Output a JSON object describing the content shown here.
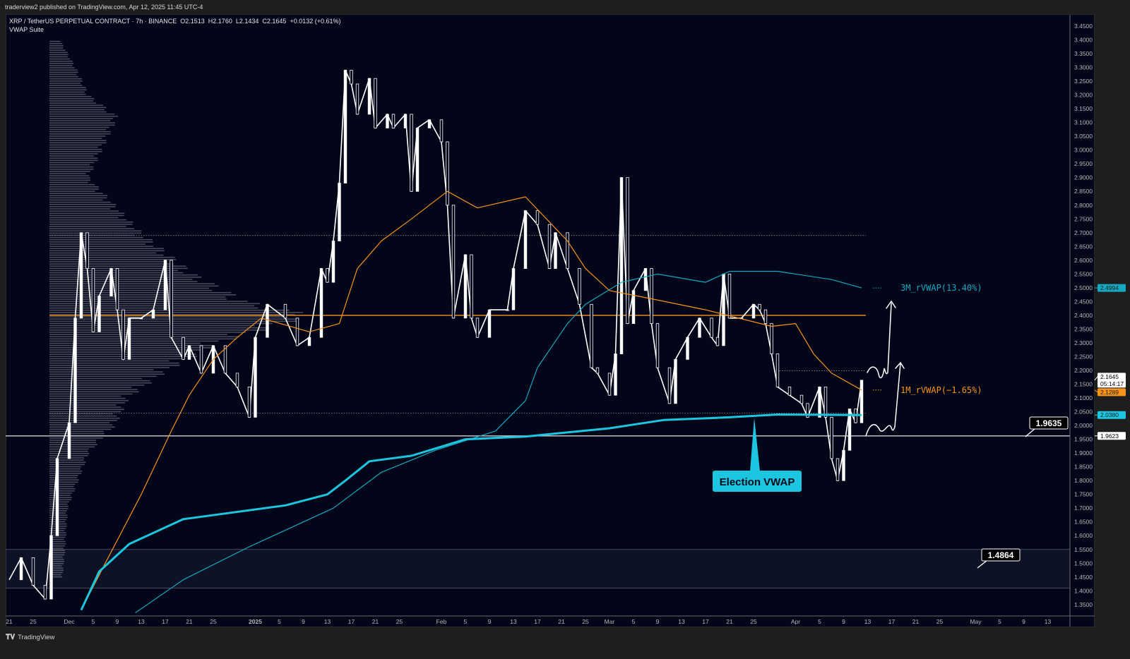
{
  "publish_line": "traderview2 published on TradingView.com, Apr 12, 2025 11:45 UTC-4",
  "header": {
    "symbol": "XRP / TetherUS PERPETUAL CONTRACT · 7h · BINANCE",
    "open": "O2.1513",
    "high": "H2.1760",
    "low": "L2.1434",
    "close": "C2.1645",
    "change": "+0.0132 (+0.61%)",
    "indicator": "VWAP Suite"
  },
  "footer": {
    "brand": "TradingView",
    "logo_icon": "tradingview-logo-icon"
  },
  "colors": {
    "background": "#030518",
    "price": "#ffffff",
    "vwap_1m": "#f7931a",
    "vwap_3m": "#13a9c0",
    "election_vwap": "#1cc6e0",
    "level_line": "#f7931a"
  },
  "chart_data": {
    "type": "line",
    "title": "",
    "xlabel": "",
    "ylabel": "",
    "ylim": [
      1.32,
      3.48
    ],
    "grid": false,
    "y_ticks": [
      "3.4500",
      "3.4000",
      "3.3500",
      "3.3000",
      "3.2500",
      "3.2000",
      "3.1500",
      "3.1000",
      "3.0500",
      "3.0000",
      "2.9500",
      "2.9000",
      "2.8500",
      "2.8000",
      "2.7500",
      "2.7000",
      "2.6500",
      "2.6000",
      "2.5500",
      "2.5000",
      "2.4500",
      "2.4000",
      "2.3500",
      "2.3000",
      "2.2500",
      "2.2000",
      "2.1500",
      "2.1000",
      "2.0500",
      "2.0000",
      "1.9500",
      "1.9000",
      "1.8500",
      "1.8000",
      "1.7500",
      "1.7000",
      "1.6500",
      "1.6000",
      "1.5500",
      "1.5000",
      "1.4500",
      "1.4000",
      "1.3500"
    ],
    "x_ticks": [
      {
        "label": "21",
        "date": "2024-11-21"
      },
      {
        "label": "25",
        "date": "2024-11-25"
      },
      {
        "label": "Dec",
        "date": "2024-12-01"
      },
      {
        "label": "5",
        "date": "2024-12-05"
      },
      {
        "label": "9",
        "date": "2024-12-09"
      },
      {
        "label": "13",
        "date": "2024-12-13"
      },
      {
        "label": "17",
        "date": "2024-12-17"
      },
      {
        "label": "21",
        "date": "2024-12-21"
      },
      {
        "label": "25",
        "date": "2024-12-25"
      },
      {
        "label": "2025",
        "date": "2025-01-01"
      },
      {
        "label": "5",
        "date": "2025-01-05"
      },
      {
        "label": "9",
        "date": "2025-01-09"
      },
      {
        "label": "13",
        "date": "2025-01-13"
      },
      {
        "label": "17",
        "date": "2025-01-17"
      },
      {
        "label": "21",
        "date": "2025-01-21"
      },
      {
        "label": "25",
        "date": "2025-01-25"
      },
      {
        "label": "Feb",
        "date": "2025-02-01"
      },
      {
        "label": "5",
        "date": "2025-02-05"
      },
      {
        "label": "9",
        "date": "2025-02-09"
      },
      {
        "label": "13",
        "date": "2025-02-13"
      },
      {
        "label": "17",
        "date": "2025-02-17"
      },
      {
        "label": "21",
        "date": "2025-02-21"
      },
      {
        "label": "25",
        "date": "2025-02-25"
      },
      {
        "label": "Mar",
        "date": "2025-03-01"
      },
      {
        "label": "5",
        "date": "2025-03-05"
      },
      {
        "label": "9",
        "date": "2025-03-09"
      },
      {
        "label": "13",
        "date": "2025-03-13"
      },
      {
        "label": "17",
        "date": "2025-03-17"
      },
      {
        "label": "21",
        "date": "2025-03-21"
      },
      {
        "label": "25",
        "date": "2025-03-25"
      },
      {
        "label": "Apr",
        "date": "2025-04-01"
      },
      {
        "label": "5",
        "date": "2025-04-05"
      },
      {
        "label": "9",
        "date": "2025-04-09"
      },
      {
        "label": "13",
        "date": "2025-04-13"
      },
      {
        "label": "17",
        "date": "2025-04-17"
      },
      {
        "label": "21",
        "date": "2025-04-21"
      },
      {
        "label": "25",
        "date": "2025-04-25"
      },
      {
        "label": "May",
        "date": "2025-05-01"
      },
      {
        "label": "5",
        "date": "2025-05-05"
      },
      {
        "label": "9",
        "date": "2025-05-09"
      },
      {
        "label": "13",
        "date": "2025-05-13"
      }
    ],
    "series": [
      {
        "key": "price",
        "color": "#ffffff",
        "points": [
          [
            "2024-11-21",
            1.44
          ],
          [
            "2024-11-23",
            1.52
          ],
          [
            "2024-11-25",
            1.42
          ],
          [
            "2024-11-27",
            1.37
          ],
          [
            "2024-11-28",
            1.6
          ],
          [
            "2024-11-29",
            1.88
          ],
          [
            "2024-12-01",
            2.01
          ],
          [
            "2024-12-02",
            2.39
          ],
          [
            "2024-12-03",
            2.7
          ],
          [
            "2024-12-04",
            2.57
          ],
          [
            "2024-12-05",
            2.34
          ],
          [
            "2024-12-06",
            2.47
          ],
          [
            "2024-12-08",
            2.57
          ],
          [
            "2024-12-09",
            2.42
          ],
          [
            "2024-12-10",
            2.24
          ],
          [
            "2024-12-11",
            2.39
          ],
          [
            "2024-12-13",
            2.39
          ],
          [
            "2024-12-15",
            2.42
          ],
          [
            "2024-12-17",
            2.6
          ],
          [
            "2024-12-18",
            2.32
          ],
          [
            "2024-12-20",
            2.24
          ],
          [
            "2024-12-21",
            2.29
          ],
          [
            "2024-12-23",
            2.19
          ],
          [
            "2024-12-25",
            2.29
          ],
          [
            "2024-12-27",
            2.19
          ],
          [
            "2024-12-29",
            2.14
          ],
          [
            "2024-12-31",
            2.03
          ],
          [
            "2025-01-01",
            2.32
          ],
          [
            "2025-01-03",
            2.44
          ],
          [
            "2025-01-06",
            2.39
          ],
          [
            "2025-01-08",
            2.29
          ],
          [
            "2025-01-10",
            2.32
          ],
          [
            "2025-01-12",
            2.57
          ],
          [
            "2025-01-13",
            2.52
          ],
          [
            "2025-01-14",
            2.67
          ],
          [
            "2025-01-15",
            2.88
          ],
          [
            "2025-01-16",
            3.29
          ],
          [
            "2025-01-17",
            3.24
          ],
          [
            "2025-01-18",
            3.13
          ],
          [
            "2025-01-20",
            3.26
          ],
          [
            "2025-01-21",
            3.08
          ],
          [
            "2025-01-23",
            3.13
          ],
          [
            "2025-01-24",
            3.08
          ],
          [
            "2025-01-26",
            3.13
          ],
          [
            "2025-01-27",
            2.85
          ],
          [
            "2025-01-28",
            3.08
          ],
          [
            "2025-01-30",
            3.11
          ],
          [
            "2025-02-01",
            3.03
          ],
          [
            "2025-02-02",
            2.8
          ],
          [
            "2025-02-03",
            2.39
          ],
          [
            "2025-02-05",
            2.62
          ],
          [
            "2025-02-06",
            2.39
          ],
          [
            "2025-02-07",
            2.32
          ],
          [
            "2025-02-09",
            2.42
          ],
          [
            "2025-02-12",
            2.42
          ],
          [
            "2025-02-13",
            2.57
          ],
          [
            "2025-02-15",
            2.78
          ],
          [
            "2025-02-17",
            2.73
          ],
          [
            "2025-02-19",
            2.57
          ],
          [
            "2025-02-20",
            2.7
          ],
          [
            "2025-02-22",
            2.57
          ],
          [
            "2025-02-24",
            2.44
          ],
          [
            "2025-02-26",
            2.21
          ],
          [
            "2025-02-27",
            2.19
          ],
          [
            "2025-03-01",
            2.11
          ],
          [
            "2025-03-02",
            2.26
          ],
          [
            "2025-03-03",
            2.9
          ],
          [
            "2025-03-04",
            2.37
          ],
          [
            "2025-03-05",
            2.49
          ],
          [
            "2025-03-07",
            2.57
          ],
          [
            "2025-03-08",
            2.37
          ],
          [
            "2025-03-09",
            2.21
          ],
          [
            "2025-03-11",
            2.08
          ],
          [
            "2025-03-12",
            2.24
          ],
          [
            "2025-03-14",
            2.32
          ],
          [
            "2025-03-16",
            2.39
          ],
          [
            "2025-03-18",
            2.32
          ],
          [
            "2025-03-19",
            2.29
          ],
          [
            "2025-03-20",
            2.55
          ],
          [
            "2025-03-21",
            2.39
          ],
          [
            "2025-03-23",
            2.39
          ],
          [
            "2025-03-25",
            2.44
          ],
          [
            "2025-03-26",
            2.42
          ],
          [
            "2025-03-27",
            2.37
          ],
          [
            "2025-03-28",
            2.26
          ],
          [
            "2025-03-29",
            2.14
          ],
          [
            "2025-03-31",
            2.11
          ],
          [
            "2025-04-02",
            2.08
          ],
          [
            "2025-04-03",
            2.03
          ],
          [
            "2025-04-05",
            2.14
          ],
          [
            "2025-04-06",
            2.03
          ],
          [
            "2025-04-07",
            1.88
          ],
          [
            "2025-04-08",
            1.8
          ],
          [
            "2025-04-09",
            1.91
          ],
          [
            "2025-04-10",
            2.06
          ],
          [
            "2025-04-11",
            2.01
          ],
          [
            "2025-04-12",
            2.1645
          ]
        ]
      },
      {
        "key": "vwap_1m",
        "name": "1M_rVWAP(−1.65%)",
        "color": "#f7931a",
        "width": 1.2,
        "points": [
          [
            "2024-12-03",
            1.33
          ],
          [
            "2024-12-07",
            1.5
          ],
          [
            "2024-12-13",
            1.75
          ],
          [
            "2024-12-18",
            1.98
          ],
          [
            "2024-12-21",
            2.11
          ],
          [
            "2024-12-25",
            2.24
          ],
          [
            "2024-12-29",
            2.32
          ],
          [
            "2025-01-02",
            2.39
          ],
          [
            "2025-01-10",
            2.34
          ],
          [
            "2025-01-15",
            2.37
          ],
          [
            "2025-01-18",
            2.57
          ],
          [
            "2025-01-22",
            2.67
          ],
          [
            "2025-01-27",
            2.75
          ],
          [
            "2025-02-02",
            2.85
          ],
          [
            "2025-02-07",
            2.79
          ],
          [
            "2025-02-15",
            2.83
          ],
          [
            "2025-02-22",
            2.67
          ],
          [
            "2025-02-25",
            2.57
          ],
          [
            "2025-03-01",
            2.49
          ],
          [
            "2025-03-08",
            2.46
          ],
          [
            "2025-03-17",
            2.42
          ],
          [
            "2025-03-28",
            2.36
          ],
          [
            "2025-04-01",
            2.37
          ],
          [
            "2025-04-04",
            2.26
          ],
          [
            "2025-04-07",
            2.19
          ],
          [
            "2025-04-12",
            2.1289
          ]
        ]
      },
      {
        "key": "vwap_3m",
        "name": "3M_rVWAP(13.40%)",
        "color": "#13a9c0",
        "width": 1.2,
        "points": [
          [
            "2024-12-12",
            1.32
          ],
          [
            "2024-12-20",
            1.44
          ],
          [
            "2024-12-31",
            1.56
          ],
          [
            "2025-01-14",
            1.7
          ],
          [
            "2025-01-22",
            1.83
          ],
          [
            "2025-01-31",
            1.91
          ],
          [
            "2025-02-10",
            1.98
          ],
          [
            "2025-02-15",
            2.09
          ],
          [
            "2025-02-17",
            2.21
          ],
          [
            "2025-02-22",
            2.37
          ],
          [
            "2025-02-25",
            2.44
          ],
          [
            "2025-03-03",
            2.52
          ],
          [
            "2025-03-09",
            2.55
          ],
          [
            "2025-03-17",
            2.52
          ],
          [
            "2025-03-21",
            2.56
          ],
          [
            "2025-03-29",
            2.56
          ],
          [
            "2025-04-07",
            2.53
          ],
          [
            "2025-04-12",
            2.4994
          ]
        ]
      },
      {
        "key": "election_vwap",
        "name": "Election VWAP",
        "color": "#1cc6e0",
        "width": 3,
        "points": [
          [
            "2024-12-03",
            1.33
          ],
          [
            "2024-12-06",
            1.47
          ],
          [
            "2024-12-11",
            1.57
          ],
          [
            "2024-12-20",
            1.66
          ],
          [
            "2025-01-06",
            1.71
          ],
          [
            "2025-01-13",
            1.75
          ],
          [
            "2025-01-16",
            1.8
          ],
          [
            "2025-01-20",
            1.87
          ],
          [
            "2025-01-27",
            1.89
          ],
          [
            "2025-02-05",
            1.95
          ],
          [
            "2025-02-15",
            1.96
          ],
          [
            "2025-03-01",
            1.99
          ],
          [
            "2025-03-10",
            2.02
          ],
          [
            "2025-03-21",
            2.03
          ],
          [
            "2025-03-29",
            2.04
          ],
          [
            "2025-04-12",
            2.038
          ]
        ]
      }
    ],
    "volume_profile": [
      [
        1.45,
        0.05
      ],
      [
        1.55,
        0.06
      ],
      [
        1.7,
        0.07
      ],
      [
        1.9,
        0.15
      ],
      [
        2.0,
        0.25
      ],
      [
        2.1,
        0.3
      ],
      [
        2.2,
        0.45
      ],
      [
        2.3,
        0.65
      ],
      [
        2.4,
        1.0
      ],
      [
        2.45,
        0.75
      ],
      [
        2.55,
        0.55
      ],
      [
        2.7,
        0.35
      ],
      [
        2.9,
        0.15
      ],
      [
        3.12,
        0.26
      ],
      [
        3.2,
        0.15
      ],
      [
        3.3,
        0.1
      ],
      [
        3.4,
        0.04
      ]
    ],
    "horizontal_levels": [
      {
        "price": 2.4,
        "color": "#f7931a",
        "style": "solid"
      },
      {
        "price": 1.9623,
        "color": "#d0d0d0",
        "style": "solid"
      },
      {
        "price": 2.69,
        "color": "#8a8a8a",
        "style": "dotted"
      },
      {
        "price": 2.045,
        "color": "#8a8a8a",
        "style": "dotted"
      },
      {
        "price": 2.1985,
        "color": "#8a8a8a",
        "style": "dotted"
      }
    ],
    "zone": {
      "from": 1.41,
      "to": 1.55
    },
    "price_tags": [
      {
        "value": "2.1645",
        "sub": "05:14:17",
        "price": 2.1645,
        "bg": "#ffffff",
        "fg": "#000000"
      },
      {
        "value": "2.1289",
        "price": 2.1289,
        "bg": "#f7931a",
        "fg": "#1a1a1a"
      },
      {
        "value": "2.0380",
        "price": 2.038,
        "bg": "#1cc6e0",
        "fg": "#1a1a1a"
      },
      {
        "value": "2.4994",
        "price": 2.4994,
        "bg": "#13a9c0",
        "fg": "#1a1a1a"
      },
      {
        "value": "1.9623",
        "price": 1.9623,
        "bg": "#ffffff",
        "fg": "#000000"
      }
    ],
    "callouts": [
      {
        "label": "1.9635",
        "price": 1.9635
      },
      {
        "label": "1.4864",
        "price": 1.4864
      }
    ],
    "annotations": {
      "election_vwap_label": "Election VWAP",
      "vwap_3m_label": "3M_rVWAP(13.40%)",
      "vwap_1m_label": "1M_rVWAP(−1.65%)"
    }
  }
}
